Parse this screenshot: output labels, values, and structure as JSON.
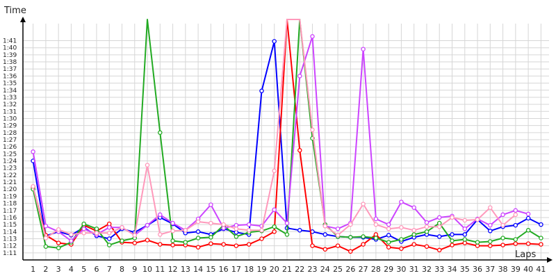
{
  "chart_data": {
    "type": "line",
    "title": "",
    "ylabel": "Time",
    "xlabel": "Laps",
    "x": [
      1,
      2,
      3,
      4,
      5,
      6,
      7,
      8,
      9,
      10,
      11,
      12,
      13,
      14,
      15,
      16,
      17,
      18,
      19,
      20,
      21,
      22,
      23,
      24,
      25,
      26,
      27,
      28,
      29,
      30,
      31,
      32,
      33,
      34,
      35,
      36,
      37,
      38,
      39,
      40,
      41
    ],
    "y_ticks": [
      "1:11",
      "1:12",
      "1:13",
      "1:14",
      "1:15",
      "1:16",
      "1:17",
      "1:18",
      "1:19",
      "1:20",
      "1:21",
      "1:22",
      "1:23",
      "1:24",
      "1:25",
      "1:26",
      "1:27",
      "1:28",
      "1:29",
      "1:30",
      "1:31",
      "1:32",
      "1:33",
      "1:34",
      "1:35",
      "1:36",
      "1:37",
      "1:38",
      "1:39",
      "1:40",
      "1:41"
    ],
    "y_tick_values": [
      71,
      72,
      73,
      74,
      75,
      76,
      77,
      78,
      79,
      80,
      81,
      82,
      83,
      84,
      85,
      86,
      87,
      88,
      89,
      90,
      91,
      92,
      93,
      94,
      95,
      96,
      97,
      98,
      99,
      100,
      101
    ],
    "ylim": [
      70,
      104
    ],
    "xlim": [
      0.2,
      41.8
    ],
    "grid": true,
    "series": [
      {
        "color": "#0000ff",
        "values": [
          84.0,
          73.4,
          74.0,
          73.5,
          74.6,
          73.4,
          73.0,
          74.4,
          73.9,
          74.9,
          76.0,
          75.1,
          73.8,
          74.0,
          73.6,
          74.4,
          73.9,
          73.6,
          93.9,
          100.9,
          74.5,
          74.2,
          74.0,
          73.6,
          73.3,
          73.2,
          73.2,
          72.9,
          73.5,
          72.6,
          73.2,
          73.6,
          73.3,
          73.6,
          73.6,
          75.7,
          74.1,
          74.7,
          74.9,
          75.9,
          75.0
        ]
      },
      {
        "color": "#ff0000",
        "values": [
          80.3,
          73.5,
          72.4,
          72.2,
          74.9,
          74.1,
          75.1,
          72.5,
          72.4,
          72.8,
          72.2,
          72.1,
          72.1,
          71.8,
          72.3,
          72.2,
          72.0,
          72.2,
          73.0,
          74.0,
          104.0,
          85.5,
          72.0,
          71.5,
          72.0,
          71.2,
          72.2,
          73.6,
          71.8,
          71.6,
          72.2,
          71.9,
          71.4,
          72.1,
          72.4,
          72.0,
          72.0,
          72.1,
          72.3,
          72.3,
          72.2
        ]
      },
      {
        "color": "#22aa22",
        "values": [
          80.0,
          71.9,
          71.7,
          72.5,
          75.1,
          74.4,
          72.1,
          72.7,
          73.1,
          104.0,
          88.0,
          72.7,
          72.5,
          73.1,
          73.2,
          74.9,
          73.3,
          73.9,
          74.1,
          74.7,
          73.6,
          104.0,
          87.2,
          75.0,
          73.3,
          73.2,
          73.3,
          73.1,
          72.5,
          72.9,
          73.6,
          74.0,
          75.2,
          72.7,
          72.9,
          72.5,
          72.6,
          73.1,
          72.9,
          74.2,
          73.1
        ]
      },
      {
        "color": "#cc44ff",
        "values": [
          85.3,
          74.8,
          74.0,
          72.7,
          74.4,
          73.6,
          74.6,
          74.6,
          73.5,
          74.9,
          76.4,
          75.2,
          74.2,
          75.8,
          77.8,
          74.5,
          74.9,
          75.0,
          74.8,
          77.1,
          75.2,
          96.0,
          101.6,
          74.8,
          74.4,
          75.2,
          99.8,
          75.8,
          75.0,
          78.2,
          77.4,
          75.3,
          76.0,
          76.2,
          74.4,
          75.8,
          74.9,
          76.4,
          77.0,
          76.5,
          null
        ]
      },
      {
        "color": "#ff99bb",
        "values": [
          80.4,
          73.1,
          74.3,
          73.6,
          73.8,
          73.8,
          73.8,
          74.6,
          73.5,
          83.4,
          73.6,
          74.1,
          74.2,
          75.4,
          75.2,
          75.0,
          74.4,
          74.2,
          74.2,
          82.6,
          104.0,
          104.0,
          88.4,
          74.8,
          73.5,
          75.0,
          77.9,
          75.0,
          74.4,
          74.6,
          74.2,
          74.7,
          74.7,
          76.0,
          75.6,
          75.7,
          77.4,
          74.9,
          76.4,
          null,
          null
        ]
      }
    ]
  }
}
